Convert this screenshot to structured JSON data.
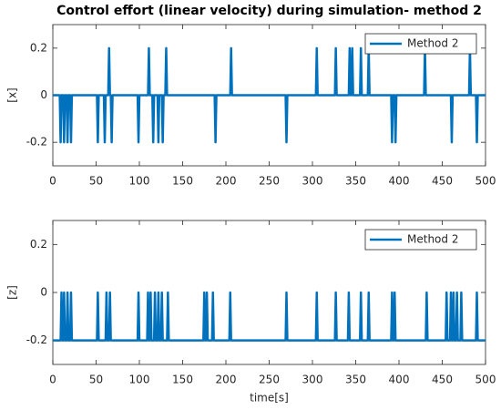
{
  "chart_data": [
    {
      "type": "line",
      "title": "Control effort (linear velocity) during simulation- method 2",
      "ylabel": "[x]",
      "x": [
        0,
        8,
        9,
        10,
        12,
        13,
        14,
        16,
        17,
        18,
        20,
        21,
        22,
        51,
        52,
        53,
        59,
        60,
        61,
        64,
        65,
        66,
        67,
        68,
        69,
        98,
        99,
        100,
        110,
        111,
        112,
        115,
        116,
        117,
        121,
        122,
        123,
        126,
        127,
        128,
        130,
        131,
        132,
        187,
        188,
        189,
        205,
        206,
        207,
        269,
        270,
        271,
        304,
        305,
        306,
        326,
        327,
        328,
        342,
        343,
        344,
        345,
        346,
        347,
        355,
        356,
        357,
        364,
        365,
        366,
        391,
        392,
        393,
        395,
        396,
        397,
        429,
        430,
        431,
        460,
        461,
        462,
        481,
        482,
        483,
        489,
        490,
        491,
        500
      ],
      "series": [
        {
          "name": "Method 2",
          "color": "#0072bd",
          "values": [
            0,
            0,
            -0.2,
            0,
            0,
            -0.2,
            0,
            0,
            -0.2,
            0,
            0,
            -0.2,
            0,
            0,
            -0.2,
            0,
            0,
            -0.2,
            0,
            0,
            0.2,
            0,
            0,
            -0.2,
            0,
            0,
            -0.2,
            0,
            0,
            0.2,
            0,
            0,
            -0.2,
            0,
            0,
            -0.2,
            0,
            0,
            -0.2,
            0,
            0,
            0.2,
            0,
            0,
            -0.2,
            0,
            0,
            0.2,
            0,
            0,
            -0.2,
            0,
            0,
            0.2,
            0,
            0,
            0.2,
            0,
            0,
            0.2,
            0,
            0,
            0.2,
            0,
            0,
            0.2,
            0,
            0,
            0.2,
            0,
            0,
            -0.2,
            0,
            0,
            -0.2,
            0,
            0,
            0.2,
            0,
            0,
            -0.2,
            0,
            0,
            0.2,
            0,
            0,
            -0.2,
            0,
            0
          ]
        }
      ],
      "xlim": [
        0,
        500
      ],
      "ylim": [
        -0.3,
        0.3
      ],
      "xticks": [
        0,
        50,
        100,
        150,
        200,
        250,
        300,
        350,
        400,
        450,
        500
      ],
      "yticks": [
        -0.2,
        0,
        0.2
      ],
      "legend": "upper right"
    },
    {
      "type": "line",
      "ylabel": "[z]",
      "xlabel": "time[s]",
      "x": [
        0,
        9,
        10,
        11,
        12,
        13,
        14,
        16,
        17,
        18,
        20,
        21,
        22,
        51,
        52,
        53,
        61,
        62,
        63,
        65,
        66,
        67,
        98,
        99,
        100,
        109,
        110,
        111,
        112,
        113,
        114,
        117,
        118,
        119,
        121,
        122,
        123,
        125,
        126,
        127,
        132,
        133,
        134,
        174,
        175,
        176,
        177,
        178,
        179,
        184,
        185,
        186,
        204,
        205,
        206,
        269,
        270,
        271,
        304,
        305,
        306,
        326,
        327,
        328,
        341,
        342,
        343,
        355,
        356,
        357,
        364,
        365,
        366,
        391,
        392,
        393,
        394,
        395,
        396,
        431,
        432,
        433,
        454,
        455,
        456,
        459,
        460,
        461,
        462,
        463,
        464,
        466,
        467,
        468,
        471,
        472,
        473,
        489,
        490,
        491,
        500
      ],
      "series": [
        {
          "name": "Method 2",
          "color": "#0072bd",
          "values": [
            -0.2,
            -0.2,
            0,
            -0.2,
            -0.2,
            0,
            -0.2,
            -0.2,
            0,
            -0.2,
            -0.2,
            0,
            -0.2,
            -0.2,
            0,
            -0.2,
            -0.2,
            0,
            -0.2,
            -0.2,
            0,
            -0.2,
            -0.2,
            0,
            -0.2,
            -0.2,
            0,
            -0.2,
            -0.2,
            0,
            -0.2,
            -0.2,
            0,
            -0.2,
            -0.2,
            0,
            -0.2,
            -0.2,
            0,
            -0.2,
            -0.2,
            0,
            -0.2,
            -0.2,
            0,
            -0.2,
            -0.2,
            0,
            -0.2,
            -0.2,
            0,
            -0.2,
            -0.2,
            0,
            -0.2,
            -0.2,
            0,
            -0.2,
            -0.2,
            0,
            -0.2,
            -0.2,
            0,
            -0.2,
            -0.2,
            0,
            -0.2,
            -0.2,
            0,
            -0.2,
            -0.2,
            0,
            -0.2,
            -0.2,
            0,
            -0.2,
            -0.2,
            0,
            -0.2,
            -0.2,
            0,
            -0.2,
            -0.2,
            0,
            -0.2,
            -0.2,
            0,
            -0.2,
            -0.2,
            0,
            -0.2,
            -0.2,
            0,
            -0.2,
            -0.2,
            0,
            -0.2,
            -0.2,
            0,
            -0.2,
            -0.2
          ]
        }
      ],
      "xlim": [
        0,
        500
      ],
      "ylim": [
        -0.3,
        0.3
      ],
      "xticks": [
        0,
        50,
        100,
        150,
        200,
        250,
        300,
        350,
        400,
        450,
        500
      ],
      "yticks": [
        -0.2,
        0,
        0.2
      ],
      "legend": "upper right"
    }
  ]
}
